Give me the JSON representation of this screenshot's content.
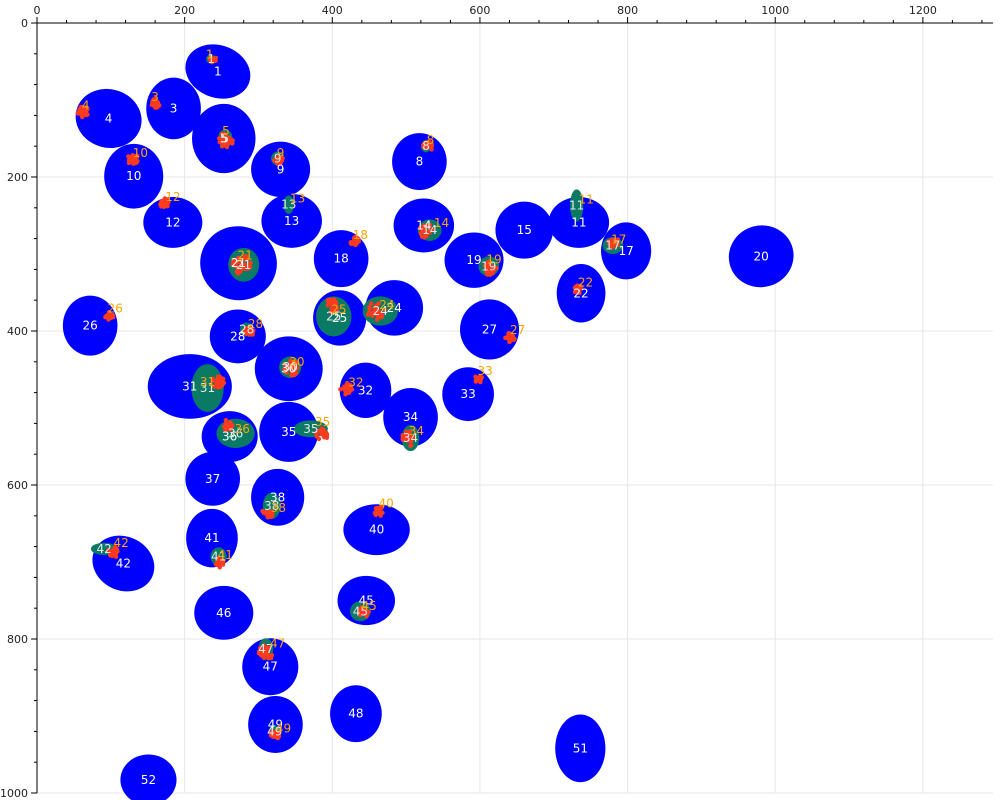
{
  "colors": {
    "blue": "#0000ff",
    "green": "#0a7a64",
    "red": "#ff3a1f",
    "blue_label": "#ffffff",
    "green_label": "#e8e8e8",
    "orange_label": "#ffa500",
    "grid": "#e6e6e6",
    "axis": "#000000"
  },
  "chart_data": {
    "type": "scatter",
    "title": "",
    "xlabel": "",
    "ylabel": "",
    "xlim": [
      0,
      1295
    ],
    "ylim": [
      0,
      1000
    ],
    "y_inverted": true,
    "x_axis_position": "top",
    "grid": true,
    "x_ticks": [
      0,
      200,
      400,
      600,
      800,
      1000,
      1200
    ],
    "y_ticks": [
      0,
      200,
      400,
      600,
      800,
      1000
    ],
    "blue_ellipses": [
      {
        "label": "1",
        "cx": 245,
        "cy": 63,
        "rx": 45,
        "ry": 34,
        "angle": 20
      },
      {
        "label": "3",
        "cx": 185,
        "cy": 111,
        "rx": 37,
        "ry": 40,
        "angle": 0
      },
      {
        "label": "4",
        "cx": 97,
        "cy": 124,
        "rx": 45,
        "ry": 38,
        "angle": 15
      },
      {
        "label": "5",
        "cx": 253,
        "cy": 150,
        "rx": 43,
        "ry": 45,
        "angle": 0
      },
      {
        "label": "8",
        "cx": 518,
        "cy": 180,
        "rx": 37,
        "ry": 37,
        "angle": 0
      },
      {
        "label": "9",
        "cx": 330,
        "cy": 190,
        "rx": 40,
        "ry": 36,
        "angle": 0
      },
      {
        "label": "10",
        "cx": 131,
        "cy": 199,
        "rx": 40,
        "ry": 42,
        "angle": 0
      },
      {
        "label": "11",
        "cx": 734,
        "cy": 259,
        "rx": 41,
        "ry": 33,
        "angle": 0
      },
      {
        "label": "12",
        "cx": 184,
        "cy": 259,
        "rx": 40,
        "ry": 33,
        "angle": 0
      },
      {
        "label": "13",
        "cx": 345,
        "cy": 257,
        "rx": 41,
        "ry": 35,
        "angle": 0
      },
      {
        "label": "14",
        "cx": 524,
        "cy": 263,
        "rx": 41,
        "ry": 35,
        "angle": 0
      },
      {
        "label": "15",
        "cx": 660,
        "cy": 269,
        "rx": 39,
        "ry": 37,
        "angle": 0
      },
      {
        "label": "17",
        "cx": 798,
        "cy": 296,
        "rx": 34,
        "ry": 37,
        "angle": 0
      },
      {
        "label": "18",
        "cx": 412,
        "cy": 306,
        "rx": 37,
        "ry": 37,
        "angle": 0
      },
      {
        "label": "19",
        "cx": 592,
        "cy": 308,
        "rx": 40,
        "ry": 36,
        "angle": 0
      },
      {
        "label": "20",
        "cx": 981,
        "cy": 303,
        "rx": 44,
        "ry": 40,
        "angle": -15
      },
      {
        "label": "21",
        "cx": 273,
        "cy": 312,
        "rx": 52,
        "ry": 48,
        "angle": 10
      },
      {
        "label": "22",
        "cx": 737,
        "cy": 351,
        "rx": 33,
        "ry": 38,
        "angle": 0
      },
      {
        "label": "24",
        "cx": 484,
        "cy": 370,
        "rx": 39,
        "ry": 36,
        "angle": 0
      },
      {
        "label": "25",
        "cx": 410,
        "cy": 383,
        "rx": 36,
        "ry": 36,
        "angle": 0
      },
      {
        "label": "26",
        "cx": 72,
        "cy": 393,
        "rx": 37,
        "ry": 39,
        "angle": 0
      },
      {
        "label": "27",
        "cx": 613,
        "cy": 398,
        "rx": 40,
        "ry": 39,
        "angle": 0
      },
      {
        "label": "28",
        "cx": 272,
        "cy": 407,
        "rx": 38,
        "ry": 35,
        "angle": 0
      },
      {
        "label": "30",
        "cx": 341,
        "cy": 449,
        "rx": 46,
        "ry": 42,
        "angle": 0
      },
      {
        "label": "31",
        "cx": 207,
        "cy": 472,
        "rx": 57,
        "ry": 42,
        "angle": 0
      },
      {
        "label": "32",
        "cx": 445,
        "cy": 477,
        "rx": 35,
        "ry": 36,
        "angle": 0
      },
      {
        "label": "33",
        "cx": 584,
        "cy": 482,
        "rx": 35,
        "ry": 35,
        "angle": 0
      },
      {
        "label": "34",
        "cx": 506,
        "cy": 512,
        "rx": 37,
        "ry": 38,
        "angle": 0
      },
      {
        "label": "35",
        "cx": 341,
        "cy": 531,
        "rx": 40,
        "ry": 39,
        "angle": 0
      },
      {
        "label": "36",
        "cx": 261,
        "cy": 537,
        "rx": 38,
        "ry": 33,
        "angle": 0
      },
      {
        "label": "37",
        "cx": 238,
        "cy": 592,
        "rx": 37,
        "ry": 35,
        "angle": 0
      },
      {
        "label": "38",
        "cx": 326,
        "cy": 616,
        "rx": 36,
        "ry": 37,
        "angle": 0
      },
      {
        "label": "40",
        "cx": 460,
        "cy": 658,
        "rx": 45,
        "ry": 33,
        "angle": 0
      },
      {
        "label": "41",
        "cx": 237,
        "cy": 669,
        "rx": 35,
        "ry": 38,
        "angle": 0
      },
      {
        "label": "42",
        "cx": 117,
        "cy": 702,
        "rx": 43,
        "ry": 35,
        "angle": 25
      },
      {
        "label": "45",
        "cx": 446,
        "cy": 750,
        "rx": 39,
        "ry": 32,
        "angle": 0
      },
      {
        "label": "46",
        "cx": 253,
        "cy": 766,
        "rx": 40,
        "ry": 35,
        "angle": 0
      },
      {
        "label": "47",
        "cx": 316,
        "cy": 836,
        "rx": 38,
        "ry": 37,
        "angle": 0
      },
      {
        "label": "48",
        "cx": 432,
        "cy": 897,
        "rx": 35,
        "ry": 37,
        "angle": 0
      },
      {
        "label": "49",
        "cx": 323,
        "cy": 911,
        "rx": 37,
        "ry": 37,
        "angle": 0
      },
      {
        "label": "51",
        "cx": 736,
        "cy": 942,
        "rx": 34,
        "ry": 44,
        "angle": 0
      },
      {
        "label": "52",
        "cx": 151,
        "cy": 983,
        "rx": 38,
        "ry": 33,
        "angle": 0
      }
    ],
    "green_ellipses": [
      {
        "label": "1",
        "cx": 236,
        "cy": 47,
        "rx": 7,
        "ry": 6,
        "angle": 0
      },
      {
        "label": "5",
        "cx": 255,
        "cy": 150,
        "rx": 10,
        "ry": 12,
        "angle": 0
      },
      {
        "label": "8",
        "cx": 527,
        "cy": 160,
        "rx": 7,
        "ry": 8,
        "angle": 0
      },
      {
        "label": "9",
        "cx": 326,
        "cy": 176,
        "rx": 9,
        "ry": 9,
        "angle": 0
      },
      {
        "label": "11",
        "cx": 731,
        "cy": 237,
        "rx": 9,
        "ry": 21,
        "angle": 0
      },
      {
        "label": "13",
        "cx": 341,
        "cy": 236,
        "rx": 7,
        "ry": 12,
        "angle": 0
      },
      {
        "label": "14",
        "cx": 532,
        "cy": 269,
        "rx": 16,
        "ry": 14,
        "angle": 0
      },
      {
        "label": "17",
        "cx": 780,
        "cy": 289,
        "rx": 14,
        "ry": 11,
        "angle": 0
      },
      {
        "label": "19",
        "cx": 612,
        "cy": 316,
        "rx": 14,
        "ry": 13,
        "angle": 0
      },
      {
        "label": "21",
        "cx": 280,
        "cy": 314,
        "rx": 21,
        "ry": 22,
        "angle": 0
      },
      {
        "label": "24",
        "cx": 465,
        "cy": 374,
        "rx": 24,
        "ry": 19,
        "angle": 0
      },
      {
        "label": "25",
        "cx": 402,
        "cy": 381,
        "rx": 24,
        "ry": 26,
        "angle": 0
      },
      {
        "label": "28",
        "cx": 284,
        "cy": 398,
        "rx": 9,
        "ry": 9,
        "angle": 0
      },
      {
        "label": "30",
        "cx": 343,
        "cy": 447,
        "rx": 15,
        "ry": 14,
        "angle": 0
      },
      {
        "label": "31",
        "cx": 231,
        "cy": 474,
        "rx": 22,
        "ry": 31,
        "angle": 0
      },
      {
        "label": "34",
        "cx": 506,
        "cy": 539,
        "rx": 12,
        "ry": 17,
        "angle": 0
      },
      {
        "label": "35",
        "cx": 371,
        "cy": 527,
        "rx": 23,
        "ry": 11,
        "angle": 0
      },
      {
        "label": "36",
        "cx": 269,
        "cy": 533,
        "rx": 26,
        "ry": 19,
        "angle": 0
      },
      {
        "label": "38",
        "cx": 318,
        "cy": 627,
        "rx": 12,
        "ry": 17,
        "angle": 0
      },
      {
        "label": "41",
        "cx": 246,
        "cy": 693,
        "rx": 11,
        "ry": 12,
        "angle": 0
      },
      {
        "label": "42",
        "cx": 91,
        "cy": 683,
        "rx": 18,
        "ry": 8,
        "angle": 0
      },
      {
        "label": "45",
        "cx": 438,
        "cy": 764,
        "rx": 14,
        "ry": 13,
        "angle": 0
      },
      {
        "label": "47",
        "cx": 310,
        "cy": 813,
        "rx": 10,
        "ry": 14,
        "angle": 0
      },
      {
        "label": "49",
        "cx": 322,
        "cy": 920,
        "rx": 8,
        "ry": 8,
        "angle": 0
      }
    ],
    "red_clusters": [
      {
        "label": "1",
        "cx": 238,
        "cy": 47,
        "size": 5
      },
      {
        "label": "3",
        "cx": 160,
        "cy": 104,
        "size": 7
      },
      {
        "label": "4",
        "cx": 62,
        "cy": 115,
        "size": 8
      },
      {
        "label": "5",
        "cx": 256,
        "cy": 152,
        "size": 11
      },
      {
        "label": "8",
        "cx": 530,
        "cy": 160,
        "size": 7
      },
      {
        "label": "9",
        "cx": 328,
        "cy": 177,
        "size": 7
      },
      {
        "label": "10",
        "cx": 130,
        "cy": 177,
        "size": 8
      },
      {
        "label": "12",
        "cx": 173,
        "cy": 234,
        "size": 7
      },
      {
        "label": "14",
        "cx": 527,
        "cy": 270,
        "size": 10
      },
      {
        "label": "17",
        "cx": 782,
        "cy": 285,
        "size": 8
      },
      {
        "label": "18",
        "cx": 430,
        "cy": 283,
        "size": 7
      },
      {
        "label": "19",
        "cx": 613,
        "cy": 318,
        "size": 10
      },
      {
        "label": "21",
        "cx": 277,
        "cy": 314,
        "size": 14
      },
      {
        "label": "22",
        "cx": 733,
        "cy": 346,
        "size": 6
      },
      {
        "label": "24",
        "cx": 459,
        "cy": 374,
        "size": 13
      },
      {
        "label": "25",
        "cx": 400,
        "cy": 367,
        "size": 10
      },
      {
        "label": "26",
        "cx": 98,
        "cy": 381,
        "size": 6
      },
      {
        "label": "27",
        "cx": 641,
        "cy": 408,
        "size": 7
      },
      {
        "label": "28",
        "cx": 287,
        "cy": 401,
        "size": 7
      },
      {
        "label": "30",
        "cx": 345,
        "cy": 448,
        "size": 11
      },
      {
        "label": "31",
        "cx": 245,
        "cy": 466,
        "size": 9
      },
      {
        "label": "32",
        "cx": 419,
        "cy": 475,
        "size": 9
      },
      {
        "label": "33",
        "cx": 598,
        "cy": 462,
        "size": 6
      },
      {
        "label": "34",
        "cx": 503,
        "cy": 540,
        "size": 11
      },
      {
        "label": "35",
        "cx": 386,
        "cy": 535,
        "size": 9
      },
      {
        "label": "36",
        "cx": 258,
        "cy": 522,
        "size": 8
      },
      {
        "label": "38",
        "cx": 311,
        "cy": 638,
        "size": 9
      },
      {
        "label": "40",
        "cx": 463,
        "cy": 634,
        "size": 7
      },
      {
        "label": "41",
        "cx": 248,
        "cy": 700,
        "size": 8
      },
      {
        "label": "42",
        "cx": 103,
        "cy": 687,
        "size": 8
      },
      {
        "label": "45",
        "cx": 442,
        "cy": 765,
        "size": 8
      },
      {
        "label": "47",
        "cx": 310,
        "cy": 818,
        "size": 11
      },
      {
        "label": "49",
        "cx": 322,
        "cy": 925,
        "size": 7
      }
    ],
    "orange_labels": [
      {
        "label": "1",
        "x": 234,
        "y": 41
      },
      {
        "label": "3",
        "x": 160,
        "y": 96
      },
      {
        "label": "4",
        "x": 66,
        "y": 107
      },
      {
        "label": "5",
        "x": 256,
        "y": 140
      },
      {
        "label": "8",
        "x": 533,
        "y": 152
      },
      {
        "label": "9",
        "x": 330,
        "y": 169
      },
      {
        "label": "10",
        "x": 140,
        "y": 169
      },
      {
        "label": "11",
        "x": 744,
        "y": 229
      },
      {
        "label": "12",
        "x": 184,
        "y": 226
      },
      {
        "label": "13",
        "x": 353,
        "y": 228
      },
      {
        "label": "14",
        "x": 548,
        "y": 260
      },
      {
        "label": "17",
        "x": 788,
        "y": 281
      },
      {
        "label": "18",
        "x": 438,
        "y": 275
      },
      {
        "label": "19",
        "x": 619,
        "y": 307
      },
      {
        "label": "21",
        "x": 282,
        "y": 302
      },
      {
        "label": "22",
        "x": 743,
        "y": 337
      },
      {
        "label": "24",
        "x": 474,
        "y": 366
      },
      {
        "label": "25",
        "x": 409,
        "y": 372
      },
      {
        "label": "26",
        "x": 106,
        "y": 371
      },
      {
        "label": "27",
        "x": 651,
        "y": 399
      },
      {
        "label": "28",
        "x": 296,
        "y": 391
      },
      {
        "label": "30",
        "x": 352,
        "y": 440
      },
      {
        "label": "31",
        "x": 231,
        "y": 466
      },
      {
        "label": "32",
        "x": 432,
        "y": 467
      },
      {
        "label": "33",
        "x": 607,
        "y": 452
      },
      {
        "label": "34",
        "x": 514,
        "y": 530
      },
      {
        "label": "35",
        "x": 387,
        "y": 518
      },
      {
        "label": "36",
        "x": 278,
        "y": 527
      },
      {
        "label": "38",
        "x": 327,
        "y": 630
      },
      {
        "label": "40",
        "x": 473,
        "y": 624
      },
      {
        "label": "41",
        "x": 255,
        "y": 691
      },
      {
        "label": "42",
        "x": 114,
        "y": 675
      },
      {
        "label": "45",
        "x": 450,
        "y": 757
      },
      {
        "label": "47",
        "x": 326,
        "y": 806
      },
      {
        "label": "49",
        "x": 334,
        "y": 916
      }
    ]
  }
}
